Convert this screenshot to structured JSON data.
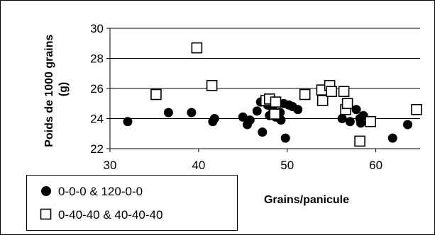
{
  "chart_data": {
    "type": "scatter",
    "xlabel": "Grains/panicule",
    "ylabel": "Poids de 1000 grains (g)",
    "ylabel_lines": [
      "Poids de 1000 grains",
      "(g)"
    ],
    "xlim": [
      30,
      65
    ],
    "ylim": [
      22,
      30
    ],
    "xticks": [
      30,
      40,
      50,
      60
    ],
    "yticks": [
      22,
      24,
      26,
      28,
      30
    ],
    "grid": "horizontal",
    "legend_position": "bottom-left",
    "series": [
      {
        "name": "0-0-0 & 120-0-0",
        "marker": "filled-circle",
        "color": "#000000",
        "points": [
          [
            32.0,
            23.8
          ],
          [
            36.6,
            24.4
          ],
          [
            39.2,
            24.4
          ],
          [
            41.6,
            23.8
          ],
          [
            41.8,
            24.0
          ],
          [
            45.0,
            24.1
          ],
          [
            45.5,
            23.6
          ],
          [
            45.8,
            23.9
          ],
          [
            46.6,
            24.5
          ],
          [
            47.0,
            25.1
          ],
          [
            47.2,
            23.1
          ],
          [
            47.8,
            24.9
          ],
          [
            48.0,
            24.2
          ],
          [
            48.4,
            24.6
          ],
          [
            48.7,
            24.1
          ],
          [
            49.2,
            24.4
          ],
          [
            49.3,
            23.9
          ],
          [
            49.6,
            25.0
          ],
          [
            49.8,
            22.7
          ],
          [
            50.2,
            24.9
          ],
          [
            50.6,
            24.8
          ],
          [
            51.2,
            24.6
          ],
          [
            56.2,
            24.0
          ],
          [
            57.1,
            23.8
          ],
          [
            57.8,
            24.6
          ],
          [
            58.2,
            24.0
          ],
          [
            58.3,
            23.7
          ],
          [
            58.6,
            24.2
          ],
          [
            61.9,
            22.7
          ],
          [
            63.6,
            23.6
          ]
        ]
      },
      {
        "name": "0-40-40 & 40-40-40",
        "marker": "open-square",
        "color": "#000000",
        "points": [
          [
            35.2,
            25.6
          ],
          [
            39.8,
            28.7
          ],
          [
            41.5,
            26.2
          ],
          [
            47.6,
            25.2
          ],
          [
            48.0,
            25.3
          ],
          [
            48.6,
            24.3
          ],
          [
            48.7,
            25.1
          ],
          [
            52.0,
            25.6
          ],
          [
            53.9,
            25.9
          ],
          [
            54.0,
            25.2
          ],
          [
            54.8,
            26.2
          ],
          [
            55.0,
            25.8
          ],
          [
            56.4,
            25.8
          ],
          [
            56.6,
            24.6
          ],
          [
            56.8,
            25.0
          ],
          [
            58.2,
            22.5
          ],
          [
            59.4,
            23.8
          ],
          [
            64.6,
            24.6
          ]
        ]
      }
    ]
  }
}
